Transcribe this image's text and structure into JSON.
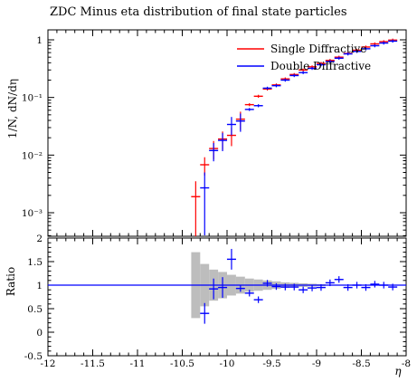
{
  "chart_data": {
    "type": "scatter",
    "title": "ZDC Minus eta distribution of final state particles",
    "xlabel": "η",
    "ylabel": "1/N, dN/dη",
    "ratio_ylabel": "Ratio",
    "x_ticks": [
      "-12",
      "-11.5",
      "-11",
      "-10.5",
      "-10",
      "-9.5",
      "-9",
      "-8.5",
      "-8"
    ],
    "y_ticks_top": [
      "1",
      "10⁻¹",
      "10⁻²",
      "10⁻³"
    ],
    "y_ticks_ratio": [
      "2",
      "1.5",
      "1",
      "0.5",
      "0",
      "-0.5"
    ],
    "xlim": [
      -12,
      -8
    ],
    "ylim_top": [
      0.00045,
      1.5
    ],
    "ylim_ratio": [
      -0.5,
      2
    ],
    "y_scale_top": "log",
    "legend_position": "top-right",
    "colors": {
      "single": "#ff0000",
      "double": "#0000ff",
      "band": "#bdbdbd"
    },
    "series": [
      {
        "name": "Single Diffractive",
        "x": [
          -10.35,
          -10.25,
          -10.15,
          -10.05,
          -9.95,
          -9.85,
          -9.75,
          -9.65,
          -9.55,
          -9.45,
          -9.35,
          -9.25,
          -9.15,
          -9.05,
          -8.95,
          -8.85,
          -8.75,
          -8.65,
          -8.55,
          -8.45,
          -8.35,
          -8.25,
          -8.15
        ],
        "values": [
          0.0019,
          0.0068,
          0.013,
          0.019,
          0.022,
          0.042,
          0.075,
          0.105,
          0.14,
          0.165,
          0.21,
          0.25,
          0.3,
          0.34,
          0.39,
          0.44,
          0.5,
          0.58,
          0.66,
          0.75,
          0.85,
          0.93,
          0.99
        ]
      },
      {
        "name": "Double Diffractive",
        "x": [
          -10.25,
          -10.15,
          -10.05,
          -9.95,
          -9.85,
          -9.75,
          -9.65,
          -9.55,
          -9.45,
          -9.35,
          -9.25,
          -9.15,
          -9.05,
          -8.95,
          -8.85,
          -8.75,
          -8.65,
          -8.55,
          -8.45,
          -8.35,
          -8.25,
          -8.15
        ],
        "values": [
          0.0027,
          0.012,
          0.018,
          0.034,
          0.039,
          0.062,
          0.072,
          0.145,
          0.16,
          0.2,
          0.24,
          0.27,
          0.32,
          0.37,
          0.42,
          0.48,
          0.57,
          0.63,
          0.7,
          0.79,
          0.88,
          0.95
        ]
      }
    ],
    "ratio": {
      "x": [
        -10.25,
        -10.15,
        -10.05,
        -9.95,
        -9.85,
        -9.75,
        -9.65,
        -9.55,
        -9.45,
        -9.35,
        -9.25,
        -9.15,
        -9.05,
        -8.95,
        -8.85,
        -8.75,
        -8.65,
        -8.55,
        -8.45,
        -8.35,
        -8.25,
        -8.15
      ],
      "values": [
        0.4,
        0.92,
        0.95,
        1.55,
        0.93,
        0.83,
        0.69,
        1.04,
        0.97,
        0.96,
        0.96,
        0.9,
        0.94,
        0.95,
        1.05,
        1.12,
        0.95,
        1.0,
        0.95,
        1.02,
        1.0,
        0.96
      ],
      "band_x": [
        -10.4,
        -10.3,
        -10.2,
        -10.1,
        -10.0,
        -9.9,
        -9.8,
        -9.7,
        -9.6,
        -9.5,
        -9.4,
        -9.3,
        -9.2,
        -9.1,
        -9.0
      ],
      "band_half_width": [
        0.7,
        0.45,
        0.33,
        0.28,
        0.22,
        0.18,
        0.14,
        0.12,
        0.1,
        0.08,
        0.06,
        0.05,
        0.04,
        0.03,
        0.02
      ]
    }
  }
}
